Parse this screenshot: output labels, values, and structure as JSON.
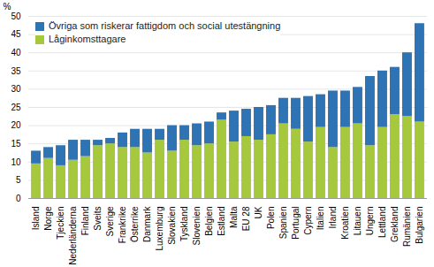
{
  "chart_data": {
    "type": "bar",
    "stacked": true,
    "grid": true,
    "legend": "top-left",
    "y_label": "%",
    "categories": [
      "Island",
      "Norge",
      "Tjeckien",
      "Nederländerna",
      "Finland",
      "Sveits",
      "Sverige",
      "Frankrike",
      "Österrike",
      "Danmark",
      "Luxemburg",
      "Slovakien",
      "Tyskland",
      "Slovenien",
      "Belgien",
      "Estland",
      "Malta",
      "EU 28",
      "UK",
      "Polen",
      "Spanien",
      "Portugal",
      "Cypern",
      "Italien",
      "Irland",
      "Kroatien",
      "Litauen",
      "Ungern",
      "Lettland",
      "Grekland",
      "Rumänien",
      "Bulgarien"
    ],
    "series": [
      {
        "name": "Låginkomsttagare",
        "color": "#a6c83c",
        "values": [
          9.5,
          11,
          9,
          10.5,
          11.5,
          14.5,
          15,
          14,
          14,
          12.5,
          16,
          13,
          16,
          14.5,
          15,
          21.5,
          15.5,
          17,
          16,
          17.5,
          20.5,
          19,
          15.5,
          19.5,
          14,
          19.5,
          20.5,
          14.5,
          19.5,
          23,
          22.5,
          21
        ]
      },
      {
        "name": "Övriga som riskerar fattigdom och social utestängning",
        "color": "#2e74b5",
        "values": [
          3.5,
          3,
          5.5,
          5.5,
          4.5,
          1.5,
          1.5,
          4,
          5,
          6.5,
          3,
          7,
          4,
          6,
          6,
          2,
          8.5,
          7.5,
          9,
          8,
          7,
          8.5,
          12.5,
          9,
          15.5,
          10,
          10,
          19,
          15.5,
          13,
          17.5,
          27
        ]
      }
    ],
    "ylim": [
      0,
      50
    ],
    "yticks": [
      0,
      5,
      10,
      15,
      20,
      25,
      30,
      35,
      40,
      45,
      50
    ]
  }
}
